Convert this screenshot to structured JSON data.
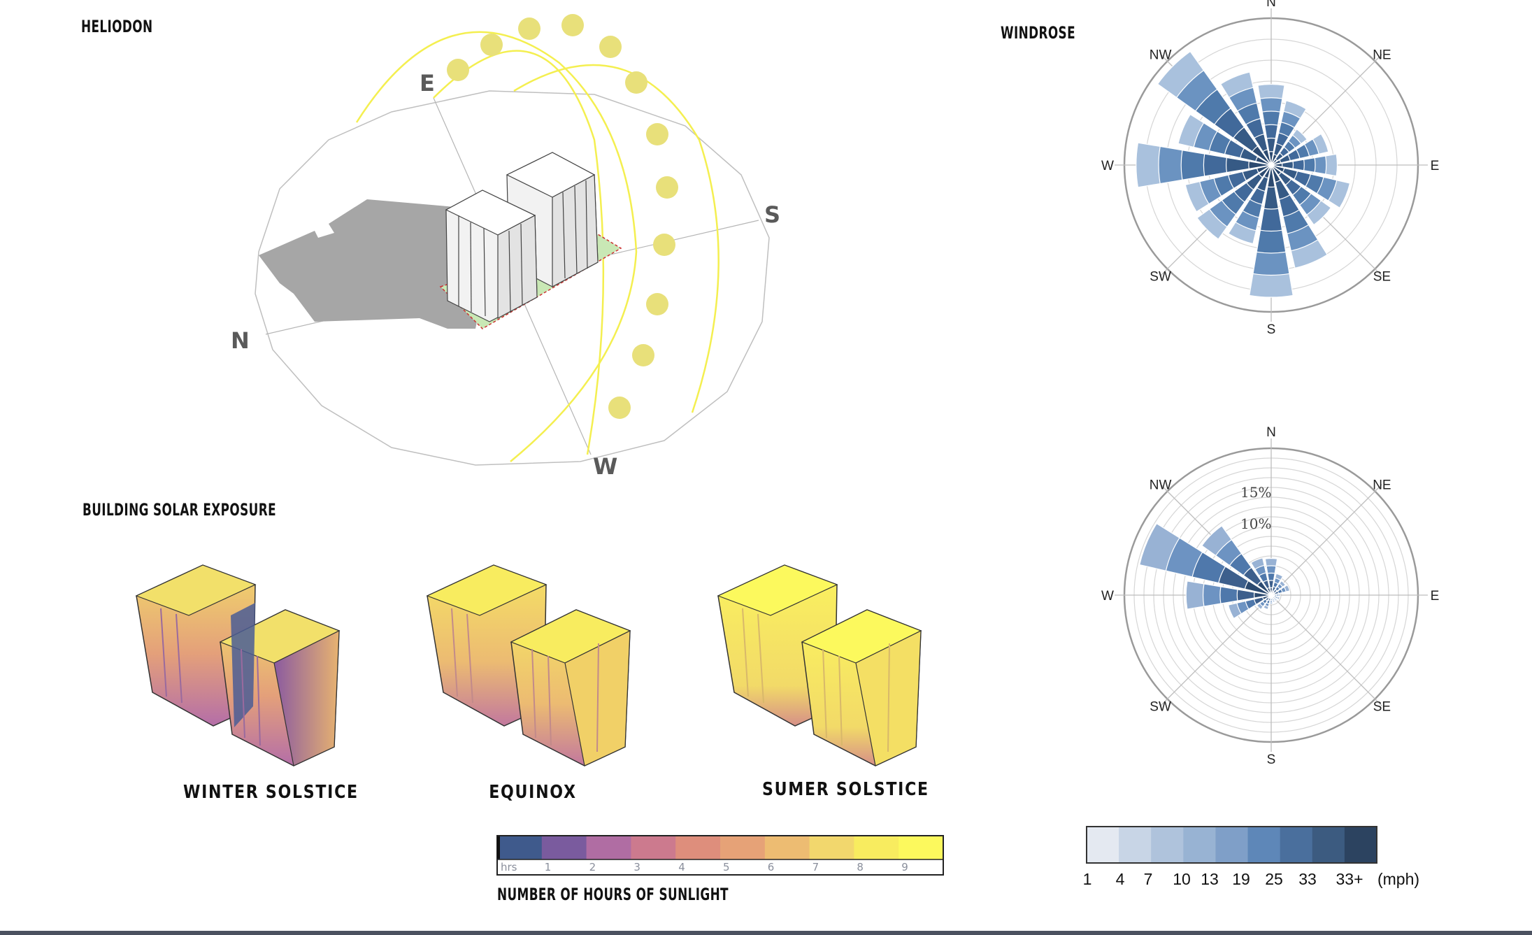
{
  "titles": {
    "heliodon": "HELIODON",
    "windrose": "WINDROSE",
    "solar_exposure": "BUILDING SOLAR EXPOSURE",
    "sunlight_legend": "NUMBER OF HOURS OF SUNLIGHT"
  },
  "heliodon": {
    "directions": {
      "n": "N",
      "e": "E",
      "s": "S",
      "w": "W"
    },
    "colors": {
      "sun": "#e8e07a",
      "path": "#f2ee5a",
      "shadow": "#a6a6a6",
      "site": "#c9e8b5"
    }
  },
  "solar_exposure": {
    "captions": [
      "WINTER SOLSTICE",
      "EQUINOX",
      "SUMER SOLSTICE"
    ]
  },
  "sunlight_legend": {
    "unit": "hrs",
    "ticks": [
      "1",
      "2",
      "3",
      "4",
      "5",
      "6",
      "7",
      "8",
      "9"
    ],
    "colors": [
      "#3f5a8c",
      "#7a5b9e",
      "#b06da3",
      "#cc7a8e",
      "#de8e7c",
      "#e6a277",
      "#edbc72",
      "#f2d76d",
      "#f8ec5f",
      "#fcf95d"
    ]
  },
  "windrose": {
    "directions": {
      "n": "N",
      "ne": "NE",
      "e": "E",
      "se": "SE",
      "s": "S",
      "sw": "SW",
      "w": "W",
      "nw": "NW"
    },
    "top_sectors": [
      {
        "dir_deg": 0,
        "value": 0.55
      },
      {
        "dir_deg": 22.5,
        "value": 0.45
      },
      {
        "dir_deg": 45,
        "value": 0.3
      },
      {
        "dir_deg": 67.5,
        "value": 0.4
      },
      {
        "dir_deg": 90,
        "value": 0.45
      },
      {
        "dir_deg": 112.5,
        "value": 0.55
      },
      {
        "dir_deg": 135,
        "value": 0.5
      },
      {
        "dir_deg": 157.5,
        "value": 0.72
      },
      {
        "dir_deg": 180,
        "value": 0.9
      },
      {
        "dir_deg": 202.5,
        "value": 0.55
      },
      {
        "dir_deg": 225,
        "value": 0.62
      },
      {
        "dir_deg": 247.5,
        "value": 0.6
      },
      {
        "dir_deg": 270,
        "value": 0.92
      },
      {
        "dir_deg": 292.5,
        "value": 0.65
      },
      {
        "dir_deg": 315,
        "value": 0.95
      },
      {
        "dir_deg": 337.5,
        "value": 0.65
      }
    ],
    "bottom_labels": [
      "15%",
      "10%"
    ],
    "bottom_sectors": [
      {
        "dir_deg": 0,
        "value": 0.25
      },
      {
        "dir_deg": 22.5,
        "value": 0.15
      },
      {
        "dir_deg": 45,
        "value": 0.12
      },
      {
        "dir_deg": 67.5,
        "value": 0.13
      },
      {
        "dir_deg": 90,
        "value": 0.06
      },
      {
        "dir_deg": 112.5,
        "value": 0.06
      },
      {
        "dir_deg": 135,
        "value": 0.05
      },
      {
        "dir_deg": 157.5,
        "value": 0.05
      },
      {
        "dir_deg": 180,
        "value": 0.06
      },
      {
        "dir_deg": 202.5,
        "value": 0.1
      },
      {
        "dir_deg": 225,
        "value": 0.12
      },
      {
        "dir_deg": 247.5,
        "value": 0.3
      },
      {
        "dir_deg": 270,
        "value": 0.58
      },
      {
        "dir_deg": 292.5,
        "value": 0.92
      },
      {
        "dir_deg": 315,
        "value": 0.58
      },
      {
        "dir_deg": 337.5,
        "value": 0.26
      }
    ]
  },
  "mph_legend": {
    "ticks": [
      "1",
      "4",
      "7",
      "10",
      "13",
      "19",
      "25",
      "33",
      "33+",
      "(mph)"
    ],
    "colors": [
      "#e4e9f1",
      "#c8d5e6",
      "#afc3dc",
      "#98b3d3",
      "#7f9fc8",
      "#5e87b8",
      "#4a6f9d",
      "#3c5b80",
      "#2c4360"
    ]
  }
}
